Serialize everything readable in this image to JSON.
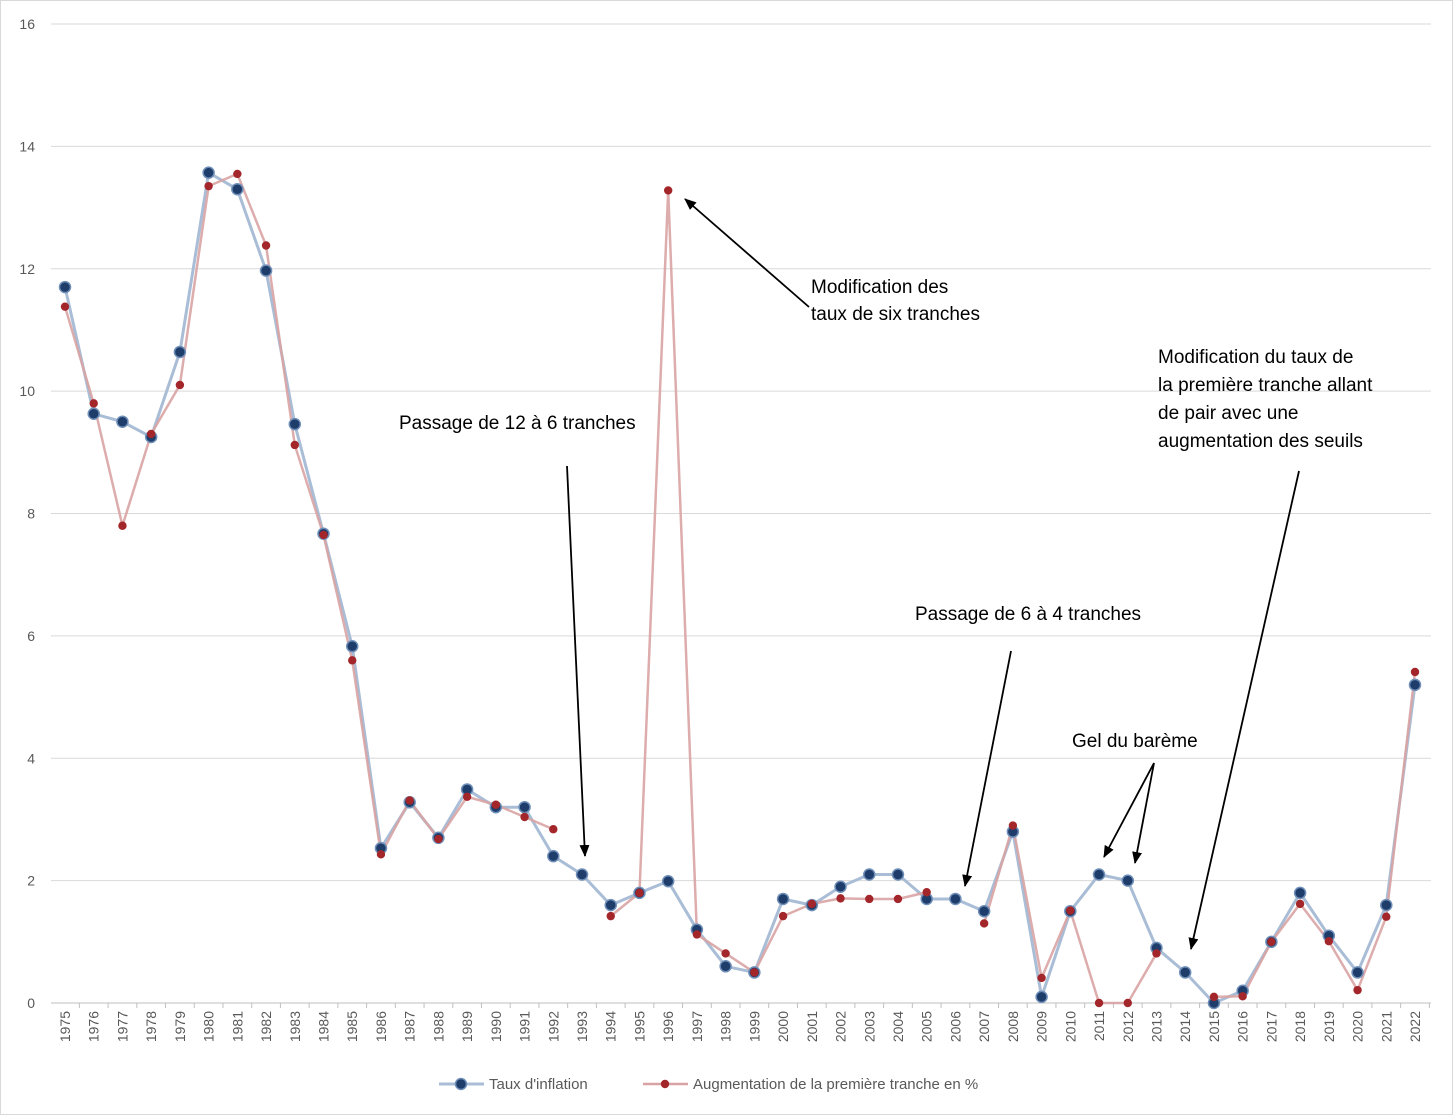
{
  "chart_data": {
    "type": "line",
    "title": "",
    "xlabel": "",
    "ylabel": "",
    "ylim": [
      0,
      16
    ],
    "yticks": [
      0,
      2,
      4,
      6,
      8,
      10,
      12,
      14,
      16
    ],
    "grid": true,
    "legend_position": "bottom",
    "categories": [
      "1975",
      "1976",
      "1977",
      "1978",
      "1979",
      "1980",
      "1981",
      "1982",
      "1983",
      "1984",
      "1985",
      "1986",
      "1987",
      "1988",
      "1989",
      "1990",
      "1991",
      "1992",
      "1993",
      "1994",
      "1995",
      "1996",
      "1997",
      "1998",
      "1999",
      "2000",
      "2001",
      "2002",
      "2003",
      "2004",
      "2005",
      "2006",
      "2007",
      "2008",
      "2009",
      "2010",
      "2011",
      "2012",
      "2013",
      "2014",
      "2015",
      "2016",
      "2017",
      "2018",
      "2019",
      "2020",
      "2021",
      "2022"
    ],
    "series": [
      {
        "name": "Taux d'inflation",
        "line_color": "#a9bdd6",
        "marker_color": "#1f3d6b",
        "values": [
          11.7,
          9.63,
          9.5,
          9.25,
          10.64,
          13.57,
          13.3,
          11.97,
          9.46,
          7.67,
          5.83,
          2.53,
          3.28,
          2.7,
          3.49,
          3.2,
          3.2,
          2.4,
          2.1,
          1.6,
          1.8,
          1.99,
          1.2,
          0.6,
          0.5,
          1.7,
          1.6,
          1.9,
          2.1,
          2.1,
          1.7,
          1.7,
          1.5,
          2.8,
          0.1,
          1.5,
          2.1,
          2.0,
          0.9,
          0.5,
          0.0,
          0.2,
          1.0,
          1.8,
          1.1,
          0.5,
          1.6,
          5.2
        ]
      },
      {
        "name": "Augmentation de la première tranche en %",
        "line_color": "#d9a3a3",
        "marker_color": "#a3262a",
        "values": [
          11.38,
          9.8,
          7.8,
          9.3,
          10.1,
          13.35,
          13.55,
          12.38,
          9.12,
          7.65,
          5.6,
          2.43,
          3.31,
          2.68,
          3.37,
          3.24,
          3.04,
          2.84,
          null,
          1.42,
          1.8,
          13.28,
          1.12,
          0.81,
          0.5,
          1.42,
          1.62,
          1.71,
          1.7,
          1.7,
          1.81,
          null,
          1.3,
          2.9,
          0.41,
          1.51,
          0.0,
          0.0,
          0.81,
          null,
          0.1,
          0.11,
          1.0,
          1.62,
          1.01,
          0.21,
          1.41,
          5.41
        ]
      }
    ],
    "annotations": [
      {
        "id": "six-tranches",
        "lines": [
          "Modification des",
          "taux de six tranches"
        ],
        "target_category": "1996"
      },
      {
        "id": "douze-a-six",
        "lines": [
          "Passage de 12 à 6 tranches"
        ],
        "target_category": "1993"
      },
      {
        "id": "premiere-tranche",
        "lines": [
          "Modification du taux de",
          "la première tranche allant",
          "de pair avec une",
          "augmentation des seuils"
        ],
        "target_category": "2014"
      },
      {
        "id": "six-a-quatre",
        "lines": [
          "Passage de 6 à 4 tranches"
        ],
        "target_category": "2006"
      },
      {
        "id": "gel",
        "lines": [
          "Gel du barème"
        ],
        "target_categories": [
          "2011",
          "2012"
        ]
      }
    ]
  }
}
